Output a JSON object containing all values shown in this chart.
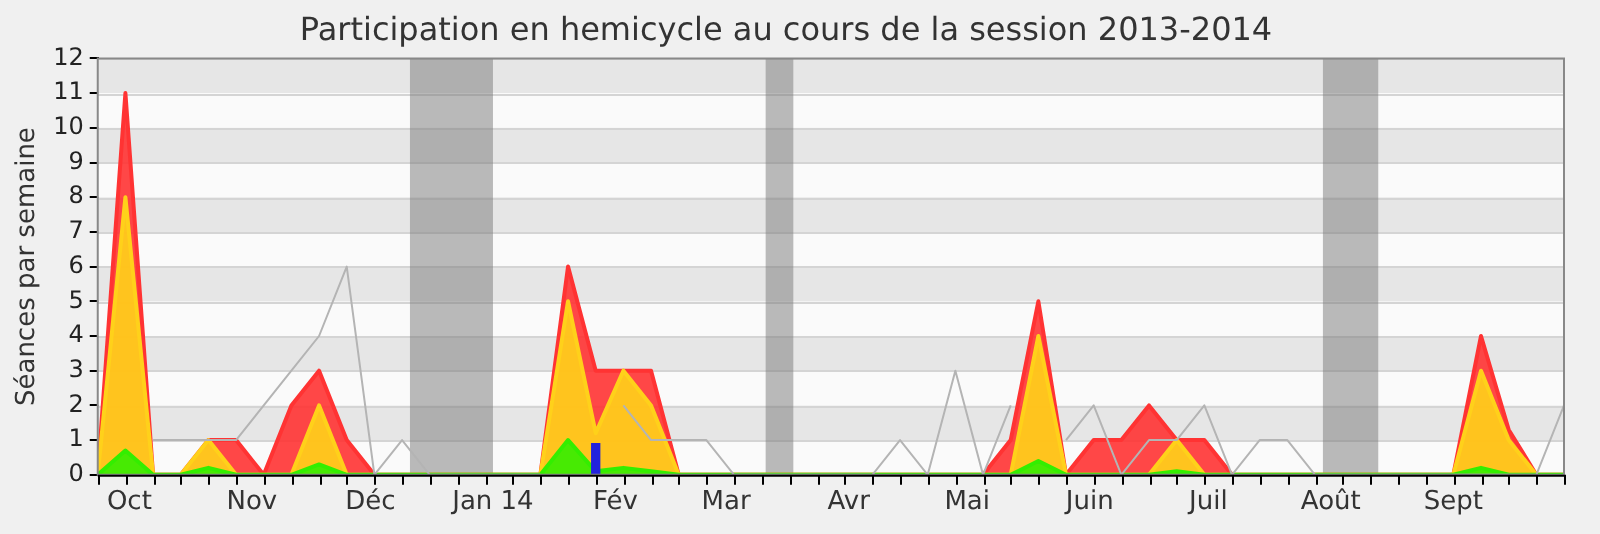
{
  "chart_data": {
    "type": "area",
    "title": "Participation en hemicycle au cours de la session 2013-2014",
    "ylabel": "Séances par semaine",
    "x": [
      "2013-09-23",
      "2013-09-30",
      "2013-10-07",
      "2013-10-14",
      "2013-10-21",
      "2013-10-28",
      "2013-11-04",
      "2013-11-11",
      "2013-11-18",
      "2013-11-25",
      "2013-12-02",
      "2013-12-09",
      "2013-12-16",
      "2013-12-23",
      "2013-12-30",
      "2014-01-06",
      "2014-01-13",
      "2014-01-20",
      "2014-01-27",
      "2014-02-03",
      "2014-02-10",
      "2014-02-17",
      "2014-02-24",
      "2014-03-03",
      "2014-03-10",
      "2014-03-17",
      "2014-03-24",
      "2014-03-31",
      "2014-04-07",
      "2014-04-14",
      "2014-04-21",
      "2014-04-28",
      "2014-05-05",
      "2014-05-12",
      "2014-05-19",
      "2014-05-26",
      "2014-06-02",
      "2014-06-09",
      "2014-06-16",
      "2014-06-23",
      "2014-06-30",
      "2014-07-07",
      "2014-07-14",
      "2014-07-21",
      "2014-07-28",
      "2014-08-04",
      "2014-08-11",
      "2014-08-18",
      "2014-08-25",
      "2014-09-01",
      "2014-09-08",
      "2014-09-15",
      "2014-09-22",
      "2014-09-29"
    ],
    "xlim": [
      "2013-09-23",
      "2014-09-29"
    ],
    "xticks": [
      {
        "value": "2013-10-01",
        "label": "Oct"
      },
      {
        "value": "2013-11-01",
        "label": "Nov"
      },
      {
        "value": "2013-12-01",
        "label": "Déc"
      },
      {
        "value": "2014-01-01",
        "label": "Jan 14"
      },
      {
        "value": "2014-02-01",
        "label": "Fév"
      },
      {
        "value": "2014-03-01",
        "label": "Mar"
      },
      {
        "value": "2014-04-01",
        "label": "Avr"
      },
      {
        "value": "2014-05-01",
        "label": "Mai"
      },
      {
        "value": "2014-06-01",
        "label": "Juin"
      },
      {
        "value": "2014-07-01",
        "label": "Juil"
      },
      {
        "value": "2014-08-01",
        "label": "Août"
      },
      {
        "value": "2014-09-01",
        "label": "Sept"
      }
    ],
    "ylim": [
      0,
      12
    ],
    "yticks": [
      0,
      1,
      2,
      3,
      4,
      5,
      6,
      7,
      8,
      9,
      10,
      11,
      12
    ],
    "grid": "y",
    "bands": [
      {
        "axis": "x",
        "from": "2013-12-11",
        "to": "2014-01-01"
      },
      {
        "axis": "x",
        "from": "2014-03-11",
        "to": "2014-03-18"
      },
      {
        "axis": "x",
        "from": "2014-07-30",
        "to": "2014-08-13"
      }
    ],
    "series": [
      {
        "color": "#ff3333",
        "values": [
          0,
          11,
          0,
          0,
          1,
          1,
          0,
          2,
          3,
          1,
          0,
          0,
          0,
          0,
          0,
          0,
          0,
          6,
          3,
          3,
          3,
          0,
          0,
          0,
          0,
          0,
          0,
          0,
          0,
          0,
          0,
          0,
          0,
          1,
          5,
          0,
          1,
          1,
          2,
          1,
          1,
          0,
          0,
          0,
          0,
          0,
          0,
          0,
          0,
          0,
          4,
          1.3,
          0,
          0
        ]
      },
      {
        "color": "#ffd11a",
        "values": [
          0,
          8,
          0,
          0,
          1,
          0,
          0,
          0,
          2,
          0,
          0,
          0,
          0,
          0,
          0,
          0,
          0,
          5,
          1.2,
          3,
          2,
          0,
          0,
          0,
          0,
          0,
          0,
          0,
          0,
          0,
          0,
          0,
          0,
          0,
          4,
          0,
          0,
          0,
          0,
          1,
          0,
          0,
          0,
          0,
          0,
          0,
          0,
          0,
          0,
          0,
          3,
          1,
          0,
          0
        ]
      },
      {
        "color": "#33ee00",
        "values": [
          0,
          0.7,
          0,
          0,
          0.2,
          0,
          0,
          0,
          0.3,
          0,
          0,
          0,
          0,
          0,
          0,
          0,
          0,
          1,
          0.1,
          0.2,
          0.1,
          0,
          0,
          0,
          0,
          0,
          0,
          0,
          0,
          0,
          0,
          0,
          0,
          0,
          0.4,
          0,
          0,
          0,
          0,
          0.1,
          0,
          0,
          0,
          0,
          0,
          0,
          0,
          0,
          0,
          0,
          0.2,
          0,
          0,
          0
        ]
      },
      {
        "type": "line",
        "color": "#b4b4b4",
        "values": [
          null,
          null,
          1,
          1,
          1,
          1,
          2,
          3,
          4,
          6,
          0,
          1,
          0,
          0,
          0,
          0,
          0,
          null,
          null,
          2,
          1,
          1,
          1,
          0,
          0,
          0,
          0,
          0,
          0,
          1,
          0,
          3,
          0,
          2,
          null,
          1,
          2,
          0,
          1,
          1,
          2,
          0,
          1,
          1,
          0,
          0,
          0,
          0,
          0,
          0,
          0,
          0,
          0,
          2
        ]
      },
      {
        "type": "bar",
        "color": "#2222dd",
        "x": [
          "2014-01-27"
        ],
        "values": [
          0.9
        ]
      }
    ]
  }
}
